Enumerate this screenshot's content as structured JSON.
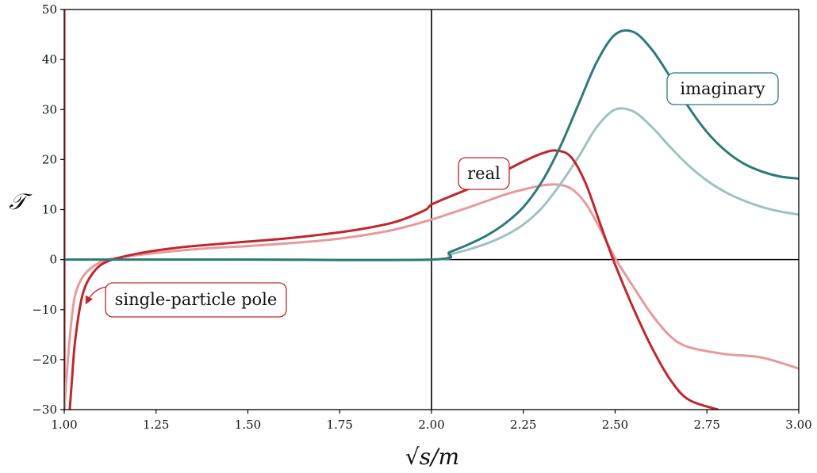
{
  "chart_data": {
    "type": "line",
    "xlabel": "√s/m",
    "ylabel": "𝒯",
    "xlim": [
      1.0,
      3.0
    ],
    "ylim": [
      -30,
      50
    ],
    "xticks": [
      "1.00",
      "1.25",
      "1.50",
      "1.75",
      "2.00",
      "2.25",
      "2.50",
      "2.75",
      "3.00"
    ],
    "yticks": [
      "−30",
      "−20",
      "−10",
      "0",
      "10",
      "20",
      "30",
      "40",
      "50"
    ],
    "grid": false,
    "colors": {
      "real_dark": "#c0272d",
      "real_light": "#e8999b",
      "imag_dark": "#2e7a79",
      "imag_light": "#9dc3c2",
      "pole_line": "#d84a4f"
    },
    "series": [
      {
        "color_key": "real_dark",
        "x": [
          1.015,
          1.02,
          1.03,
          1.05,
          1.08,
          1.12,
          1.2,
          1.3,
          1.4,
          1.5,
          1.6,
          1.7,
          1.8,
          1.9,
          1.98,
          2.0,
          2.05,
          2.1,
          2.15,
          2.2,
          2.25,
          2.3,
          2.34,
          2.38,
          2.42,
          2.46,
          2.5,
          2.55,
          2.6,
          2.65,
          2.7,
          2.78
        ],
        "values": [
          -30,
          -25,
          -16,
          -7,
          -2.5,
          -0.3,
          1.2,
          2.3,
          3.0,
          3.6,
          4.2,
          5.0,
          6.0,
          7.5,
          9.8,
          11.0,
          12.6,
          14.1,
          15.8,
          17.7,
          19.6,
          21.2,
          21.8,
          20.5,
          15.2,
          7.0,
          -1.0,
          -9.8,
          -17.6,
          -24.0,
          -28.0,
          -30.0
        ]
      },
      {
        "color_key": "real_light",
        "x": [
          1.0,
          1.01,
          1.02,
          1.03,
          1.05,
          1.08,
          1.12,
          1.2,
          1.3,
          1.4,
          1.5,
          1.6,
          1.7,
          1.8,
          1.9,
          2.0,
          2.05,
          2.1,
          2.15,
          2.2,
          2.25,
          2.3,
          2.34,
          2.38,
          2.42,
          2.46,
          2.5,
          2.55,
          2.6,
          2.65,
          2.7,
          2.8,
          2.9,
          3.0
        ],
        "values": [
          -30,
          -20,
          -12,
          -7,
          -3.5,
          -1.3,
          0.0,
          0.9,
          1.7,
          2.3,
          2.7,
          3.2,
          3.8,
          4.7,
          6.0,
          8.0,
          9.2,
          10.4,
          11.7,
          13.0,
          14.0,
          14.8,
          15.0,
          14.2,
          11.2,
          6.0,
          0.3,
          -5.5,
          -11.0,
          -15.3,
          -17.5,
          -18.9,
          -19.6,
          -21.8
        ]
      },
      {
        "color_key": "imag_dark",
        "x": [
          1.0,
          1.5,
          2.0,
          2.05,
          2.1,
          2.15,
          2.2,
          2.25,
          2.3,
          2.35,
          2.4,
          2.45,
          2.5,
          2.55,
          2.6,
          2.65,
          2.7,
          2.75,
          2.8,
          2.85,
          2.9,
          2.95,
          3.0
        ],
        "values": [
          0,
          0,
          0,
          1.5,
          3.0,
          4.8,
          7.2,
          10.5,
          15.5,
          22.5,
          31.0,
          39.5,
          45.0,
          45.5,
          42.0,
          36.5,
          30.5,
          25.5,
          21.8,
          19.2,
          17.6,
          16.6,
          16.2
        ]
      },
      {
        "color_key": "imag_light",
        "x": [
          1.0,
          1.5,
          2.0,
          2.05,
          2.1,
          2.15,
          2.2,
          2.25,
          2.3,
          2.35,
          2.4,
          2.45,
          2.5,
          2.55,
          2.6,
          2.65,
          2.7,
          2.75,
          2.8,
          2.85,
          2.9,
          2.95,
          3.0
        ],
        "values": [
          0,
          0,
          0,
          1.0,
          2.0,
          3.2,
          4.8,
          7.0,
          10.3,
          15.0,
          20.5,
          26.5,
          30.0,
          29.6,
          26.5,
          22.5,
          18.8,
          15.8,
          13.5,
          11.8,
          10.5,
          9.6,
          9.0
        ]
      }
    ],
    "annotations": [
      {
        "text": "imaginary",
        "color_key": "imag_dark"
      },
      {
        "text": "real",
        "color_key": "real_dark"
      },
      {
        "text": "single-particle pole",
        "color_key": "real_dark"
      }
    ]
  }
}
